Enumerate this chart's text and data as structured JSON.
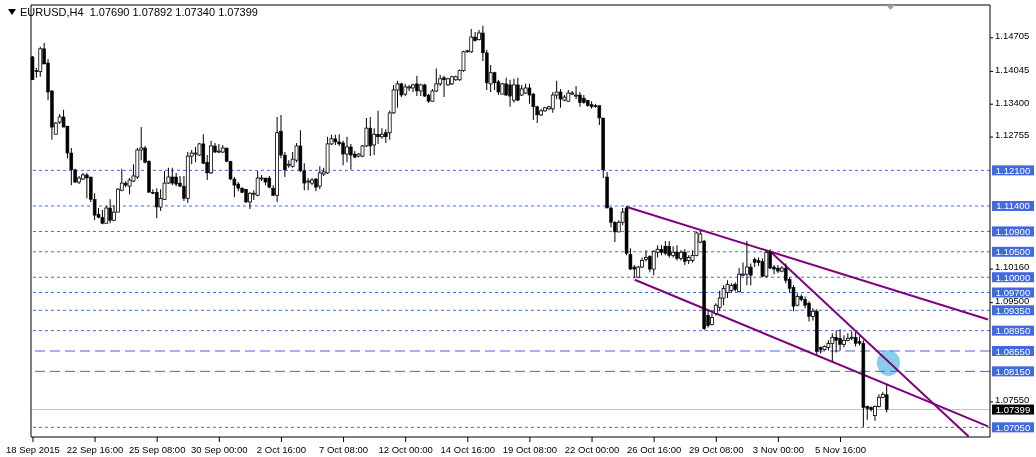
{
  "chart_data": {
    "type": "candlestick",
    "title": "EURUSD,H4  1.07690 1.07892 1.07340 1.07399",
    "color": "#000000",
    "categories": [
      "18 Sep 2015",
      null,
      null,
      null,
      null,
      null,
      null,
      null,
      null,
      null,
      null,
      null,
      null,
      null,
      null,
      null,
      "22 Sep 16:00",
      null,
      null,
      null,
      null,
      null,
      null,
      null,
      null,
      null,
      null,
      null,
      null,
      null,
      null,
      null,
      "25 Sep 08:00",
      null,
      null,
      null,
      null,
      null,
      null,
      null,
      null,
      null,
      null,
      null,
      null,
      null,
      null,
      null,
      "30 Sep 00:00",
      null,
      null,
      null,
      null,
      null,
      null,
      null,
      null,
      null,
      null,
      null,
      null,
      null,
      null,
      null,
      "2 Oct 16:00",
      null,
      null,
      null,
      null,
      null,
      null,
      null,
      null,
      null,
      null,
      null,
      null,
      null,
      null,
      null,
      "7 Oct 08:00",
      null,
      null,
      null,
      null,
      null,
      null,
      null,
      null,
      null,
      null,
      null,
      null,
      null,
      null,
      null,
      "12 Oct 00:00",
      null,
      null,
      null,
      null,
      null,
      null,
      null,
      null,
      null,
      null,
      null,
      null,
      null,
      null,
      null,
      "14 Oct 16:00",
      null,
      null,
      null,
      null,
      null,
      null,
      null,
      null,
      null,
      null,
      null,
      null,
      null,
      null,
      null,
      "19 Oct 08:00",
      null,
      null,
      null,
      null,
      null,
      null,
      null,
      null,
      null,
      null,
      null,
      null,
      null,
      null,
      null,
      "22 Oct 00:00",
      null,
      null,
      null,
      null,
      null,
      null,
      null,
      null,
      null,
      null,
      null,
      null,
      null,
      null,
      null,
      "26 Oct 16:00",
      null,
      null,
      null,
      null,
      null,
      null,
      null,
      null,
      null,
      null,
      null,
      null,
      null,
      null,
      null,
      "29 Oct 08:00",
      null,
      null,
      null,
      null,
      null,
      null,
      null,
      null,
      null,
      null,
      null,
      null,
      null,
      null,
      null,
      "3 Nov 00:00",
      null,
      null,
      null,
      null,
      null,
      null,
      null,
      null,
      null,
      null,
      null,
      null,
      null,
      null,
      null,
      "5 Nov 16:00",
      null,
      null,
      null,
      null,
      null,
      null,
      null,
      null,
      null,
      null,
      null,
      null,
      null,
      null,
      null,
      null,
      null,
      null,
      null,
      null,
      null,
      null,
      null,
      null,
      null,
      null,
      null,
      null,
      null,
      null,
      null,
      null,
      null,
      null,
      null,
      null,
      null,
      null
    ],
    "ohlc": [
      [
        1.1433,
        1.1435,
        1.1388,
        1.1388
      ],
      [
        1.1406,
        1.1411,
        1.1392,
        1.1404
      ],
      [
        1.1404,
        1.1453,
        1.1394,
        1.1449
      ],
      [
        1.1449,
        1.1461,
        1.1419,
        1.1419
      ],
      [
        1.1421,
        1.1429,
        1.1348,
        1.1364
      ],
      [
        1.1366,
        1.1368,
        1.127,
        1.1295
      ],
      [
        1.1281,
        1.1305,
        1.1281,
        1.1303
      ],
      [
        1.1305,
        1.1321,
        1.1301,
        1.1315
      ],
      [
        1.1315,
        1.1329,
        1.1295,
        1.1295
      ],
      [
        1.1297,
        1.1297,
        1.1234,
        1.1244
      ],
      [
        1.1244,
        1.1254,
        1.1181,
        1.1211
      ],
      [
        1.1211,
        1.1213,
        1.1185,
        1.1187
      ],
      [
        1.1187,
        1.1199,
        1.1183,
        1.1195
      ],
      [
        1.1193,
        1.1205,
        1.1191,
        1.1201
      ],
      [
        1.1201,
        1.1205,
        1.1155,
        1.1195
      ],
      [
        1.1197,
        1.1197,
        1.1148,
        1.1153
      ],
      [
        1.1153,
        1.1165,
        1.1112,
        1.1122
      ],
      [
        1.1124,
        1.1136,
        1.1116,
        1.1118
      ],
      [
        1.1118,
        1.1132,
        1.1104,
        1.1106
      ],
      [
        1.1106,
        1.114,
        1.1106,
        1.1136
      ],
      [
        1.1136,
        1.1153,
        1.1106,
        1.1112
      ],
      [
        1.1112,
        1.1142,
        1.111,
        1.1128
      ],
      [
        1.1128,
        1.1175,
        1.1128,
        1.1173
      ],
      [
        1.1171,
        1.1213,
        1.1169,
        1.1185
      ],
      [
        1.1185,
        1.1189,
        1.1177,
        1.1181
      ],
      [
        1.1179,
        1.1195,
        1.1163,
        1.1191
      ],
      [
        1.1189,
        1.1222,
        1.1187,
        1.1199
      ],
      [
        1.1197,
        1.1254,
        1.1193,
        1.125
      ],
      [
        1.125,
        1.1295,
        1.123,
        1.1254
      ],
      [
        1.1254,
        1.1258,
        1.1224,
        1.1226
      ],
      [
        1.1228,
        1.123,
        1.1167,
        1.1167
      ],
      [
        1.1167,
        1.1173,
        1.1163,
        1.1165
      ],
      [
        1.1167,
        1.1175,
        1.1116,
        1.1138
      ],
      [
        1.1138,
        1.1173,
        1.113,
        1.1155
      ],
      [
        1.1153,
        1.1209,
        1.1152,
        1.1185
      ],
      [
        1.1185,
        1.1215,
        1.1183,
        1.1197
      ],
      [
        1.1197,
        1.1215,
        1.1181,
        1.1185
      ],
      [
        1.1197,
        1.1205,
        1.1179,
        1.1183
      ],
      [
        1.1185,
        1.1199,
        1.1177,
        1.1179
      ],
      [
        1.1179,
        1.1199,
        1.115,
        1.1155
      ],
      [
        1.1155,
        1.1246,
        1.1146,
        1.1238
      ],
      [
        1.1238,
        1.125,
        1.1222,
        1.1244
      ],
      [
        1.1242,
        1.1256,
        1.1226,
        1.1244
      ],
      [
        1.124,
        1.1264,
        1.1238,
        1.1262
      ],
      [
        1.1262,
        1.1281,
        1.1222,
        1.1224
      ],
      [
        1.1226,
        1.124,
        1.1191,
        1.1205
      ],
      [
        1.1205,
        1.1268,
        1.1203,
        1.1258
      ],
      [
        1.1258,
        1.1264,
        1.1244,
        1.1246
      ],
      [
        1.1246,
        1.1262,
        1.1244,
        1.1248
      ],
      [
        1.1246,
        1.126,
        1.1244,
        1.1254
      ],
      [
        1.1254,
        1.1254,
        1.1226,
        1.1228
      ],
      [
        1.1228,
        1.1228,
        1.1191,
        1.1193
      ],
      [
        1.1193,
        1.1197,
        1.1157,
        1.1181
      ],
      [
        1.1183,
        1.1187,
        1.1169,
        1.1175
      ],
      [
        1.1175,
        1.1177,
        1.1165,
        1.1167
      ],
      [
        1.1173,
        1.1173,
        1.1146,
        1.1148
      ],
      [
        1.1148,
        1.1167,
        1.1134,
        1.1165
      ],
      [
        1.1163,
        1.1171,
        1.1152,
        1.1165
      ],
      [
        1.1161,
        1.1209,
        1.1159,
        1.1195
      ],
      [
        1.1193,
        1.1201,
        1.1189,
        1.1195
      ],
      [
        1.1195,
        1.1195,
        1.1181,
        1.1187
      ],
      [
        1.1195,
        1.1199,
        1.1175,
        1.1177
      ],
      [
        1.1175,
        1.1181,
        1.1159,
        1.1161
      ],
      [
        1.1161,
        1.1315,
        1.1148,
        1.1284
      ],
      [
        1.1287,
        1.1319,
        1.1234,
        1.124
      ],
      [
        1.124,
        1.1246,
        1.1197,
        1.1211
      ],
      [
        1.122,
        1.123,
        1.1215,
        1.1222
      ],
      [
        1.1218,
        1.1246,
        1.1215,
        1.1232
      ],
      [
        1.123,
        1.1264,
        1.1226,
        1.1258
      ],
      [
        1.1258,
        1.1289,
        1.1207,
        1.1209
      ],
      [
        1.1209,
        1.1224,
        1.1171,
        1.1185
      ],
      [
        1.1187,
        1.1195,
        1.1171,
        1.1189
      ],
      [
        1.1185,
        1.1195,
        1.1181,
        1.1191
      ],
      [
        1.1193,
        1.1195,
        1.1169,
        1.1177
      ],
      [
        1.1179,
        1.1218,
        1.1173,
        1.1205
      ],
      [
        1.1203,
        1.1215,
        1.1199,
        1.1207
      ],
      [
        1.1205,
        1.1276,
        1.1203,
        1.1262
      ],
      [
        1.1262,
        1.128,
        1.126,
        1.1272
      ],
      [
        1.1272,
        1.128,
        1.126,
        1.1266
      ],
      [
        1.1266,
        1.1281,
        1.1258,
        1.1262
      ],
      [
        1.1264,
        1.1268,
        1.122,
        1.1242
      ],
      [
        1.1242,
        1.1276,
        1.1226,
        1.1256
      ],
      [
        1.1256,
        1.1262,
        1.1211,
        1.124
      ],
      [
        1.1242,
        1.1248,
        1.1234,
        1.1236
      ],
      [
        1.1238,
        1.1244,
        1.1236,
        1.1242
      ],
      [
        1.1238,
        1.126,
        1.1236,
        1.1258
      ],
      [
        1.1258,
        1.1313,
        1.1256,
        1.1293
      ],
      [
        1.1293,
        1.1315,
        1.1238,
        1.1258
      ],
      [
        1.126,
        1.1293,
        1.124,
        1.1281
      ],
      [
        1.1281,
        1.1327,
        1.1262,
        1.1276
      ],
      [
        1.1276,
        1.1293,
        1.1272,
        1.1281
      ],
      [
        1.1284,
        1.1291,
        1.1264,
        1.1276
      ],
      [
        1.1284,
        1.1327,
        1.127,
        1.1323
      ],
      [
        1.1323,
        1.1378,
        1.1321,
        1.1368
      ],
      [
        1.1368,
        1.1386,
        1.1333,
        1.138
      ],
      [
        1.138,
        1.1382,
        1.1354,
        1.1358
      ],
      [
        1.136,
        1.138,
        1.1356,
        1.1374
      ],
      [
        1.1372,
        1.1378,
        1.1366,
        1.1374
      ],
      [
        1.1372,
        1.138,
        1.1364,
        1.1378
      ],
      [
        1.138,
        1.1396,
        1.1356,
        1.1366
      ],
      [
        1.1366,
        1.138,
        1.1356,
        1.1378
      ],
      [
        1.1378,
        1.138,
        1.1354,
        1.1356
      ],
      [
        1.1358,
        1.136,
        1.1343,
        1.1346
      ],
      [
        1.1346,
        1.137,
        1.1345,
        1.1366
      ],
      [
        1.1366,
        1.141,
        1.1364,
        1.138
      ],
      [
        1.138,
        1.1398,
        1.1376,
        1.139
      ],
      [
        1.1392,
        1.1396,
        1.1354,
        1.1388
      ],
      [
        1.1378,
        1.1392,
        1.1376,
        1.139
      ],
      [
        1.138,
        1.1396,
        1.1378,
        1.1394
      ],
      [
        1.1388,
        1.1396,
        1.1386,
        1.1394
      ],
      [
        1.1388,
        1.1408,
        1.1386,
        1.1406
      ],
      [
        1.1406,
        1.1445,
        1.1404,
        1.1443
      ],
      [
        1.1443,
        1.1447,
        1.1441,
        1.1445
      ],
      [
        1.1443,
        1.1488,
        1.1441,
        1.1472
      ],
      [
        1.1472,
        1.1482,
        1.1463,
        1.1465
      ],
      [
        1.1467,
        1.1486,
        1.1465,
        1.148
      ],
      [
        1.148,
        1.1494,
        1.1425,
        1.1441
      ],
      [
        1.1441,
        1.1447,
        1.1368,
        1.1382
      ],
      [
        1.138,
        1.1417,
        1.1364,
        1.1402
      ],
      [
        1.1402,
        1.1404,
        1.1368,
        1.1382
      ],
      [
        1.1384,
        1.1388,
        1.1358,
        1.1364
      ],
      [
        1.136,
        1.1382,
        1.136,
        1.138
      ],
      [
        1.138,
        1.1392,
        1.1356,
        1.1358
      ],
      [
        1.1378,
        1.1388,
        1.1335,
        1.1356
      ],
      [
        1.1348,
        1.139,
        1.1343,
        1.1378
      ],
      [
        1.1378,
        1.1392,
        1.1346,
        1.1348
      ],
      [
        1.1358,
        1.1378,
        1.1356,
        1.137
      ],
      [
        1.1362,
        1.138,
        1.136,
        1.1372
      ],
      [
        1.1372,
        1.138,
        1.1341,
        1.1358
      ],
      [
        1.136,
        1.1362,
        1.1309,
        1.1335
      ],
      [
        1.1335,
        1.1337,
        1.1303,
        1.1319
      ],
      [
        1.1319,
        1.1331,
        1.1317,
        1.1327
      ],
      [
        1.1327,
        1.1335,
        1.1325,
        1.1333
      ],
      [
        1.1331,
        1.1337,
        1.1329,
        1.1335
      ],
      [
        1.1331,
        1.1364,
        1.1323,
        1.1358
      ],
      [
        1.1358,
        1.1386,
        1.135,
        1.1364
      ],
      [
        1.1364,
        1.137,
        1.1333,
        1.135
      ],
      [
        1.1348,
        1.1358,
        1.1346,
        1.1354
      ],
      [
        1.1346,
        1.1368,
        1.1345,
        1.1362
      ],
      [
        1.136,
        1.1366,
        1.1358,
        1.1362
      ],
      [
        1.1356,
        1.1376,
        1.135,
        1.1358
      ],
      [
        1.1358,
        1.1364,
        1.1335,
        1.1343
      ],
      [
        1.1352,
        1.1358,
        1.1341,
        1.1343
      ],
      [
        1.1348,
        1.1348,
        1.1335,
        1.1337
      ],
      [
        1.1339,
        1.1346,
        1.1331,
        1.1335
      ],
      [
        1.1337,
        1.1341,
        1.1333,
        1.1335
      ],
      [
        1.1337,
        1.1337,
        1.1299,
        1.1313
      ],
      [
        1.1313,
        1.1313,
        1.1195,
        1.1211
      ],
      [
        1.1197,
        1.1207,
        1.1136,
        1.1136
      ],
      [
        1.1136,
        1.1138,
        1.1098,
        1.1108
      ],
      [
        1.1108,
        1.111,
        1.1069,
        1.1089
      ],
      [
        1.1089,
        1.1112,
        1.1089,
        1.1108
      ],
      [
        1.1108,
        1.1136,
        1.1102,
        1.1128
      ],
      [
        1.1136,
        1.114,
        1.1043,
        1.1047
      ],
      [
        1.1045,
        1.1057,
        1.1014,
        1.1016
      ],
      [
        1.102,
        1.1024,
        1.0998,
        1.1016
      ],
      [
        1.1,
        1.1022,
        1.0998,
        1.102
      ],
      [
        1.102,
        1.1039,
        1.1018,
        1.1033
      ],
      [
        1.1035,
        1.1053,
        1.1031,
        1.1039
      ],
      [
        1.1041,
        1.1043,
        1.101,
        1.1016
      ],
      [
        1.1016,
        1.1053,
        1.1004,
        1.1051
      ],
      [
        1.1049,
        1.1063,
        1.1039,
        1.1055
      ],
      [
        1.1055,
        1.1063,
        1.1043,
        1.1049
      ],
      [
        1.1061,
        1.1071,
        1.1043,
        1.1047
      ],
      [
        1.1061,
        1.1071,
        1.1039,
        1.1043
      ],
      [
        1.1043,
        1.1061,
        1.1039,
        1.1049
      ],
      [
        1.1049,
        1.1063,
        1.1033,
        1.1037
      ],
      [
        1.1037,
        1.1053,
        1.1033,
        1.1049
      ],
      [
        1.1049,
        1.1055,
        1.1024,
        1.1031
      ],
      [
        1.1033,
        1.1043,
        1.1026,
        1.1039
      ],
      [
        1.1033,
        1.1053,
        1.1029,
        1.1043
      ],
      [
        1.1043,
        1.109,
        1.1041,
        1.1087
      ],
      [
        1.1069,
        1.109,
        1.1067,
        1.1085
      ],
      [
        1.1071,
        1.1073,
        1.0896,
        1.0899
      ],
      [
        1.0925,
        1.0935,
        1.0901,
        1.0905
      ],
      [
        1.0907,
        1.0929,
        1.0905,
        1.0921
      ],
      [
        1.0929,
        1.0949,
        1.0925,
        1.0945
      ],
      [
        1.0941,
        1.0974,
        1.0933,
        1.0959
      ],
      [
        1.0959,
        1.0984,
        1.0945,
        1.0978
      ],
      [
        1.097,
        1.0994,
        1.0959,
        1.0986
      ],
      [
        1.0974,
        1.0988,
        1.097,
        1.0984
      ],
      [
        1.0986,
        1.099,
        1.0972,
        1.0976
      ],
      [
        1.0972,
        1.1018,
        1.097,
        1.1006
      ],
      [
        1.1004,
        1.1029,
        1.1002,
        1.1006
      ],
      [
        1.1006,
        1.1071,
        1.0984,
        1.102
      ],
      [
        1.102,
        1.1027,
        1.0984,
        1.1004
      ],
      [
        1.1035,
        1.1039,
        1.102,
        1.1029
      ],
      [
        1.1033,
        1.1039,
        1.1022,
        1.1029
      ],
      [
        1.1031,
        1.1037,
        1.1,
        1.1002
      ],
      [
        1.1002,
        1.1053,
        1.1,
        1.1049
      ],
      [
        1.1049,
        1.1055,
        1.1016,
        1.1018
      ],
      [
        1.102,
        1.1024,
        1.1006,
        1.1016
      ],
      [
        1.1018,
        1.1024,
        1.1008,
        1.1012
      ],
      [
        1.1012,
        1.1022,
        1.101,
        1.1018
      ],
      [
        1.1018,
        1.1027,
        1.0988,
        1.0994
      ],
      [
        1.0996,
        1.1,
        1.097,
        1.0978
      ],
      [
        1.098,
        1.0984,
        1.0933,
        1.0943
      ],
      [
        1.0945,
        1.0968,
        1.0943,
        1.0962
      ],
      [
        1.0962,
        1.0966,
        1.0953,
        1.0956
      ],
      [
        1.0956,
        1.0962,
        1.0939,
        1.0945
      ],
      [
        1.0949,
        1.0953,
        1.0913,
        1.0923
      ],
      [
        1.0923,
        1.0939,
        1.0915,
        1.0933
      ],
      [
        1.0933,
        1.0937,
        1.0848,
        1.0854
      ],
      [
        1.0862,
        1.0864,
        1.085,
        1.0858
      ],
      [
        1.0858,
        1.0866,
        1.0856,
        1.0864
      ],
      [
        1.0862,
        1.0876,
        1.0856,
        1.087
      ],
      [
        1.087,
        1.089,
        1.0835,
        1.0882
      ],
      [
        1.0882,
        1.0896,
        1.0852,
        1.0876
      ],
      [
        1.088,
        1.0898,
        1.0856,
        1.0868
      ],
      [
        1.0868,
        1.0886,
        1.0862,
        1.0876
      ],
      [
        1.0876,
        1.089,
        1.0874,
        1.088
      ],
      [
        1.088,
        1.0894,
        1.0876,
        1.0882
      ],
      [
        1.0882,
        1.0892,
        1.0864,
        1.087
      ],
      [
        1.0874,
        1.0884,
        1.0866,
        1.087
      ],
      [
        1.087,
        1.0876,
        1.0706,
        1.0744
      ],
      [
        1.0746,
        1.0748,
        1.072,
        1.0742
      ],
      [
        1.0744,
        1.0746,
        1.0736,
        1.074
      ],
      [
        1.0728,
        1.0748,
        1.0718,
        1.0746
      ],
      [
        1.0746,
        1.077,
        1.0744,
        1.0764
      ],
      [
        1.0764,
        1.0774,
        1.0762,
        1.077
      ],
      [
        1.0769,
        1.07892,
        1.0734,
        1.07399
      ],
      null,
      null,
      null,
      null,
      null,
      null,
      null,
      null,
      null,
      null,
      null,
      null,
      null,
      null,
      null,
      null,
      null,
      null,
      null,
      null,
      null,
      null,
      null,
      null,
      null,
      null
    ],
    "series": [
      {
        "type": "line",
        "color": "#800080",
        "values": [
          null,
          null,
          null,
          null,
          null,
          null,
          null,
          null,
          null,
          null,
          null,
          null,
          null,
          null,
          null,
          null,
          null,
          null,
          null,
          null,
          null,
          null,
          null,
          null,
          null,
          null,
          null,
          null,
          null,
          null,
          null,
          null,
          null,
          null,
          null,
          null,
          null,
          null,
          null,
          null,
          null,
          null,
          null,
          null,
          null,
          null,
          null,
          null,
          null,
          null,
          null,
          null,
          null,
          null,
          null,
          null,
          null,
          null,
          null,
          null,
          null,
          null,
          null,
          null,
          null,
          null,
          null,
          null,
          null,
          null,
          null,
          null,
          null,
          null,
          null,
          null,
          null,
          null,
          null,
          null,
          null,
          null,
          null,
          null,
          null,
          null,
          null,
          null,
          null,
          null,
          null,
          null,
          null,
          null,
          null,
          null,
          null,
          null,
          null,
          null,
          null,
          null,
          null,
          null,
          null,
          null,
          null,
          null,
          null,
          null,
          null,
          null,
          null,
          null,
          null,
          null,
          null,
          null,
          null,
          null,
          null,
          null,
          null,
          null,
          null,
          null,
          null,
          null,
          null,
          null,
          null,
          null,
          null,
          null,
          null,
          null,
          null,
          null,
          null,
          null,
          null,
          null,
          null,
          null,
          null,
          null,
          null,
          null,
          null,
          null,
          null,
          null,
          null,
          1.1138,
          null,
          null,
          null,
          null,
          null,
          null,
          null,
          null,
          null,
          null,
          null,
          null,
          null,
          null,
          null,
          null,
          null,
          null,
          null,
          null,
          null,
          null,
          null,
          null,
          null,
          null,
          null,
          null,
          null,
          null,
          null,
          null,
          null,
          null,
          null,
          null,
          null,
          null,
          null,
          null,
          null,
          null,
          null,
          null,
          null,
          null,
          null,
          null,
          null,
          null,
          null,
          null,
          null,
          null,
          null,
          null,
          null,
          null,
          null,
          null,
          null,
          null,
          null,
          null,
          null,
          null,
          null,
          null,
          null,
          null,
          null,
          null,
          null,
          null,
          null,
          null,
          null,
          null,
          null,
          null,
          null,
          null,
          null,
          null,
          null,
          null,
          null,
          null,
          null,
          null,
          null,
          null,
          1.0917
        ]
      },
      {
        "type": "line",
        "color": "#800080",
        "values": [
          null,
          null,
          null,
          null,
          null,
          null,
          null,
          null,
          null,
          null,
          null,
          null,
          null,
          null,
          null,
          null,
          null,
          null,
          null,
          null,
          null,
          null,
          null,
          null,
          null,
          null,
          null,
          null,
          null,
          null,
          null,
          null,
          null,
          null,
          null,
          null,
          null,
          null,
          null,
          null,
          null,
          null,
          null,
          null,
          null,
          null,
          null,
          null,
          null,
          null,
          null,
          null,
          null,
          null,
          null,
          null,
          null,
          null,
          null,
          null,
          null,
          null,
          null,
          null,
          null,
          null,
          null,
          null,
          null,
          null,
          null,
          null,
          null,
          null,
          null,
          null,
          null,
          null,
          null,
          null,
          null,
          null,
          null,
          null,
          null,
          null,
          null,
          null,
          null,
          null,
          null,
          null,
          null,
          null,
          null,
          null,
          null,
          null,
          null,
          null,
          null,
          null,
          null,
          null,
          null,
          null,
          null,
          null,
          null,
          null,
          null,
          null,
          null,
          null,
          null,
          null,
          null,
          null,
          null,
          null,
          null,
          null,
          null,
          null,
          null,
          null,
          null,
          null,
          null,
          null,
          null,
          null,
          null,
          null,
          null,
          null,
          null,
          null,
          null,
          null,
          null,
          null,
          null,
          null,
          null,
          null,
          null,
          null,
          null,
          null,
          null,
          null,
          null,
          null,
          null,
          1.0995,
          null,
          null,
          null,
          null,
          null,
          null,
          null,
          null,
          null,
          null,
          null,
          null,
          null,
          null,
          null,
          null,
          null,
          null,
          null,
          null,
          null,
          null,
          null,
          null,
          null,
          null,
          null,
          null,
          null,
          null,
          null,
          null,
          null,
          null,
          null,
          null,
          null,
          null,
          null,
          null,
          null,
          null,
          null,
          null,
          null,
          null,
          null,
          null,
          null,
          null,
          null,
          null,
          null,
          null,
          null,
          null,
          null,
          null,
          null,
          null,
          null,
          null,
          null,
          null,
          null,
          null,
          null,
          null,
          null,
          null,
          null,
          null,
          null,
          null,
          null,
          null,
          null,
          null,
          null,
          null,
          null,
          null,
          null,
          null,
          null,
          null,
          null,
          null,
          null,
          null,
          1.0707
        ]
      },
      {
        "type": "line",
        "color": "#800080",
        "values": [
          null,
          null,
          null,
          null,
          null,
          null,
          null,
          null,
          null,
          null,
          null,
          null,
          null,
          null,
          null,
          null,
          null,
          null,
          null,
          null,
          null,
          null,
          null,
          null,
          null,
          null,
          null,
          null,
          null,
          null,
          null,
          null,
          null,
          null,
          null,
          null,
          null,
          null,
          null,
          null,
          null,
          null,
          null,
          null,
          null,
          null,
          null,
          null,
          null,
          null,
          null,
          null,
          null,
          null,
          null,
          null,
          null,
          null,
          null,
          null,
          null,
          null,
          null,
          null,
          null,
          null,
          null,
          null,
          null,
          null,
          null,
          null,
          null,
          null,
          null,
          null,
          null,
          null,
          null,
          null,
          null,
          null,
          null,
          null,
          null,
          null,
          null,
          null,
          null,
          null,
          null,
          null,
          null,
          null,
          null,
          null,
          null,
          null,
          null,
          null,
          null,
          null,
          null,
          null,
          null,
          null,
          null,
          null,
          null,
          null,
          null,
          null,
          null,
          null,
          null,
          null,
          null,
          null,
          null,
          null,
          null,
          null,
          null,
          null,
          null,
          null,
          null,
          null,
          null,
          null,
          null,
          null,
          null,
          null,
          null,
          null,
          null,
          null,
          null,
          null,
          null,
          null,
          null,
          null,
          null,
          null,
          null,
          null,
          null,
          null,
          null,
          null,
          null,
          null,
          null,
          null,
          null,
          null,
          null,
          null,
          null,
          null,
          null,
          null,
          null,
          null,
          null,
          null,
          null,
          null,
          null,
          null,
          null,
          null,
          null,
          null,
          null,
          null,
          null,
          null,
          null,
          null,
          null,
          null,
          null,
          null,
          null,
          null,
          null,
          null,
          1.105,
          null,
          null,
          null,
          null,
          null,
          null,
          null,
          null,
          null,
          null,
          null,
          null,
          null,
          null,
          null,
          null,
          null,
          null,
          null,
          null,
          null,
          null,
          null,
          null,
          null,
          null,
          null,
          null,
          null,
          null,
          null,
          null,
          null,
          null,
          null,
          null,
          null,
          null,
          null,
          null,
          null,
          null,
          null,
          null,
          null,
          null,
          null,
          null,
          null,
          null,
          1.0687,
          null,
          null,
          null,
          null,
          null
        ]
      }
    ],
    "ylim": [
      1.0686,
      1.1535
    ],
    "yticks": [
      1.14705,
      1.14045,
      {
        "value": 1.134,
        "label": "1.13400"
      },
      1.12755,
      {
        "value": 1.1016,
        "label": "1.10160"
      },
      {
        "value": 1.095,
        "label": "1.09500"
      },
      {
        "value": 1.0755,
        "label": "1.07550"
      }
    ],
    "ref_lines": [
      {
        "axis": "y",
        "value": 1.121,
        "label": "1.12100",
        "color": "#4169e1",
        "line_style": "dotted"
      },
      {
        "axis": "y",
        "value": 1.114,
        "label": "1.11400",
        "color": "#4169e1",
        "line_style": "dotted"
      },
      {
        "axis": "y",
        "value": 1.109,
        "label": "1.10900",
        "color": "#4169e1",
        "line_style": "dotted"
      },
      {
        "axis": "y",
        "value": 1.105,
        "label": "1.10500",
        "color": "#4169e1",
        "line_style": "dotted"
      },
      {
        "axis": "y",
        "value": 1.1,
        "label": "1.10000",
        "color": "#4169e1",
        "line_style": "dotted"
      },
      {
        "axis": "y",
        "value": 1.097,
        "label": "1.09700",
        "color": "#4169e1",
        "line_style": "dotted"
      },
      {
        "axis": "y",
        "value": 1.0935,
        "label": "1.09350",
        "color": "#4169e1",
        "line_style": "dotted"
      },
      {
        "axis": "y",
        "value": 1.0895,
        "label": "1.08950",
        "color": "#4169e1",
        "line_style": "dotted"
      },
      {
        "axis": "y",
        "value": 1.0855,
        "label": "1.08550",
        "color": "#4169e1",
        "line_style": "dashed"
      },
      {
        "axis": "y",
        "value": 1.0815,
        "label": "1.08150",
        "color": "#4169e1",
        "line_style": "dashed"
      },
      {
        "axis": "y",
        "value": 1.07399,
        "label": "1.07399",
        "color": "#c0c0c0",
        "line_style": "solid"
      },
      {
        "axis": "y",
        "value": 1.0705,
        "label": "1.07050",
        "color": "#4169e1",
        "line_style": "dotted"
      }
    ]
  }
}
